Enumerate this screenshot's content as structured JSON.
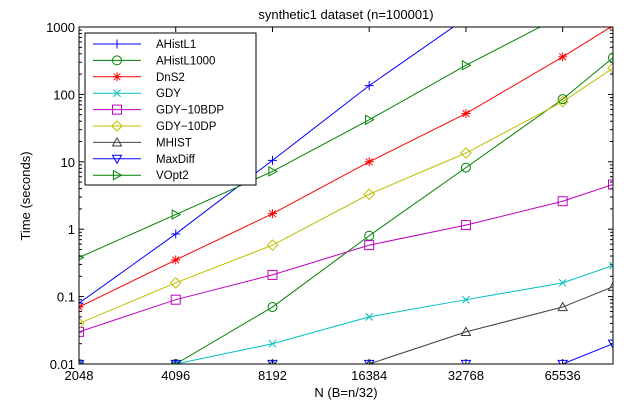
{
  "chart_data": {
    "type": "line",
    "title": "synthetic1 dataset (n=100001)",
    "xlabel": "N (B=n/32)",
    "ylabel": "Time (seconds)",
    "x_scale": "log2",
    "y_scale": "log10",
    "xlim": [
      2048,
      94000
    ],
    "ylim": [
      0.01,
      1000
    ],
    "x_ticks": [
      2048,
      4096,
      8192,
      16384,
      32768,
      65536
    ],
    "x_tick_labels": [
      "2048",
      "4096",
      "8192",
      "16384",
      "32768",
      "65536"
    ],
    "y_ticks": [
      0.01,
      0.1,
      1,
      10,
      100,
      1000
    ],
    "y_tick_labels": [
      "0.01",
      "0.1",
      "1",
      "10",
      "100",
      "1000"
    ],
    "legend_position": "top-left",
    "series": [
      {
        "name": "AHistL1",
        "color": "#0000ff",
        "marker": "plus",
        "x": [
          2048,
          4096,
          8192,
          16384,
          32768
        ],
        "y": [
          0.08,
          0.85,
          10.5,
          135,
          1350
        ]
      },
      {
        "name": "AHistL1000",
        "color": "#008000",
        "marker": "circle",
        "x": [
          2048,
          4096,
          8192,
          16384,
          32768,
          65536,
          94000
        ],
        "y": [
          0.01,
          0.01,
          0.07,
          0.8,
          8.2,
          85,
          350
        ]
      },
      {
        "name": "DnS2",
        "color": "#ff0000",
        "marker": "star",
        "x": [
          2048,
          4096,
          8192,
          16384,
          32768,
          65536,
          94000
        ],
        "y": [
          0.07,
          0.35,
          1.7,
          10,
          52,
          360,
          1050
        ]
      },
      {
        "name": "GDY",
        "color": "#00bfbf",
        "marker": "x",
        "x": [
          2048,
          4096,
          8192,
          16384,
          32768,
          65536,
          94000
        ],
        "y": [
          0.01,
          0.01,
          0.02,
          0.05,
          0.09,
          0.16,
          0.29
        ]
      },
      {
        "name": "GDY−10BDP",
        "color": "#bf00bf",
        "marker": "square",
        "x": [
          2048,
          4096,
          8192,
          16384,
          32768,
          65536,
          94000
        ],
        "y": [
          0.03,
          0.09,
          0.21,
          0.58,
          1.15,
          2.6,
          4.6
        ]
      },
      {
        "name": "GDY−10DP",
        "color": "#bfbf00",
        "marker": "diamond",
        "x": [
          2048,
          4096,
          8192,
          16384,
          32768,
          65536,
          94000
        ],
        "y": [
          0.04,
          0.16,
          0.58,
          3.3,
          13.5,
          78,
          245
        ]
      },
      {
        "name": "MHIST",
        "color": "#404040",
        "marker": "triangle-up",
        "x": [
          2048,
          4096,
          8192,
          16384,
          32768,
          65536,
          94000
        ],
        "y": [
          0.01,
          0.01,
          0.01,
          0.01,
          0.03,
          0.07,
          0.14
        ]
      },
      {
        "name": "MaxDiff",
        "color": "#0000ff",
        "marker": "triangle-down",
        "x": [
          2048,
          4096,
          8192,
          16384,
          32768,
          65536,
          94000
        ],
        "y": [
          0.01,
          0.01,
          0.01,
          0.01,
          0.01,
          0.01,
          0.02
        ]
      },
      {
        "name": "VOpt2",
        "color": "#008000",
        "marker": "triangle-right",
        "x": [
          2048,
          4096,
          8192,
          16384,
          32768,
          60000
        ],
        "y": [
          0.38,
          1.65,
          7.2,
          42,
          270,
          1200
        ]
      }
    ]
  }
}
